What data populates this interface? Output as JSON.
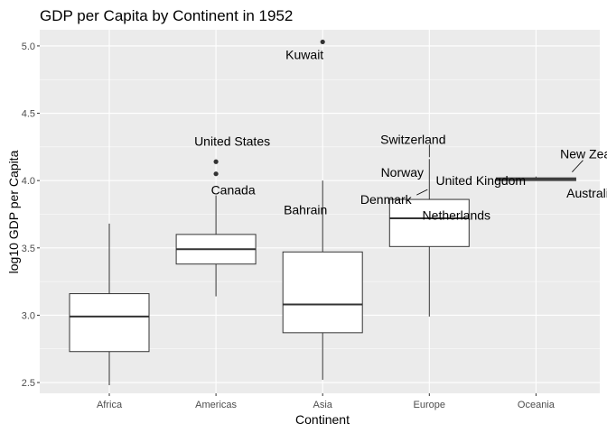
{
  "chart_data": {
    "type": "boxplot",
    "title": "GDP per Capita by Continent in 1952",
    "xlabel": "Continent",
    "ylabel": "log10 GDP per Capita",
    "ylim": [
      2.42,
      5.12
    ],
    "yticks": [
      "2.5",
      "3.0",
      "3.5",
      "4.0",
      "4.5",
      "5.0"
    ],
    "grid": true,
    "categories": [
      "Africa",
      "Americas",
      "Asia",
      "Europe",
      "Oceania"
    ],
    "boxes": [
      {
        "category": "Africa",
        "min": 2.48,
        "q1": 2.73,
        "median": 2.99,
        "q3": 3.16,
        "max": 3.68
      },
      {
        "category": "Americas",
        "min": 3.14,
        "q1": 3.38,
        "median": 3.49,
        "q3": 3.6,
        "max": 3.89
      },
      {
        "category": "Asia",
        "min": 2.52,
        "q1": 2.87,
        "median": 3.08,
        "q3": 3.47,
        "max": 4.0
      },
      {
        "category": "Europe",
        "min": 2.99,
        "q1": 3.51,
        "median": 3.72,
        "q3": 3.86,
        "max": 4.16
      },
      {
        "category": "Oceania",
        "min": 4.0,
        "q1": 4.0,
        "median": 4.01,
        "q3": 4.02,
        "max": 4.03
      }
    ],
    "outliers": [
      {
        "category": "Americas",
        "y": 4.14
      },
      {
        "category": "Americas",
        "y": 4.05
      },
      {
        "category": "Asia",
        "y": 5.03
      }
    ],
    "labels": [
      {
        "text": "Kuwait",
        "category": "Asia",
        "y": 5.03
      },
      {
        "text": "United States",
        "category": "Americas",
        "y": 4.14
      },
      {
        "text": "Canada",
        "category": "Americas",
        "y": 4.05
      },
      {
        "text": "Bahrain",
        "category": "Asia",
        "y": 3.97
      },
      {
        "text": "Switzerland",
        "category": "Europe",
        "y": 4.16
      },
      {
        "text": "Norway",
        "category": "Europe",
        "y": 4.02
      },
      {
        "text": "United Kingdom",
        "category": "Europe",
        "y": 4.0
      },
      {
        "text": "Denmark",
        "category": "Europe",
        "y": 3.98
      },
      {
        "text": "Netherlands",
        "category": "Europe",
        "y": 3.93
      },
      {
        "text": "New Zealand",
        "category": "Oceania",
        "y": 4.03
      },
      {
        "text": "Australia",
        "category": "Oceania",
        "y": 4.0
      }
    ]
  }
}
